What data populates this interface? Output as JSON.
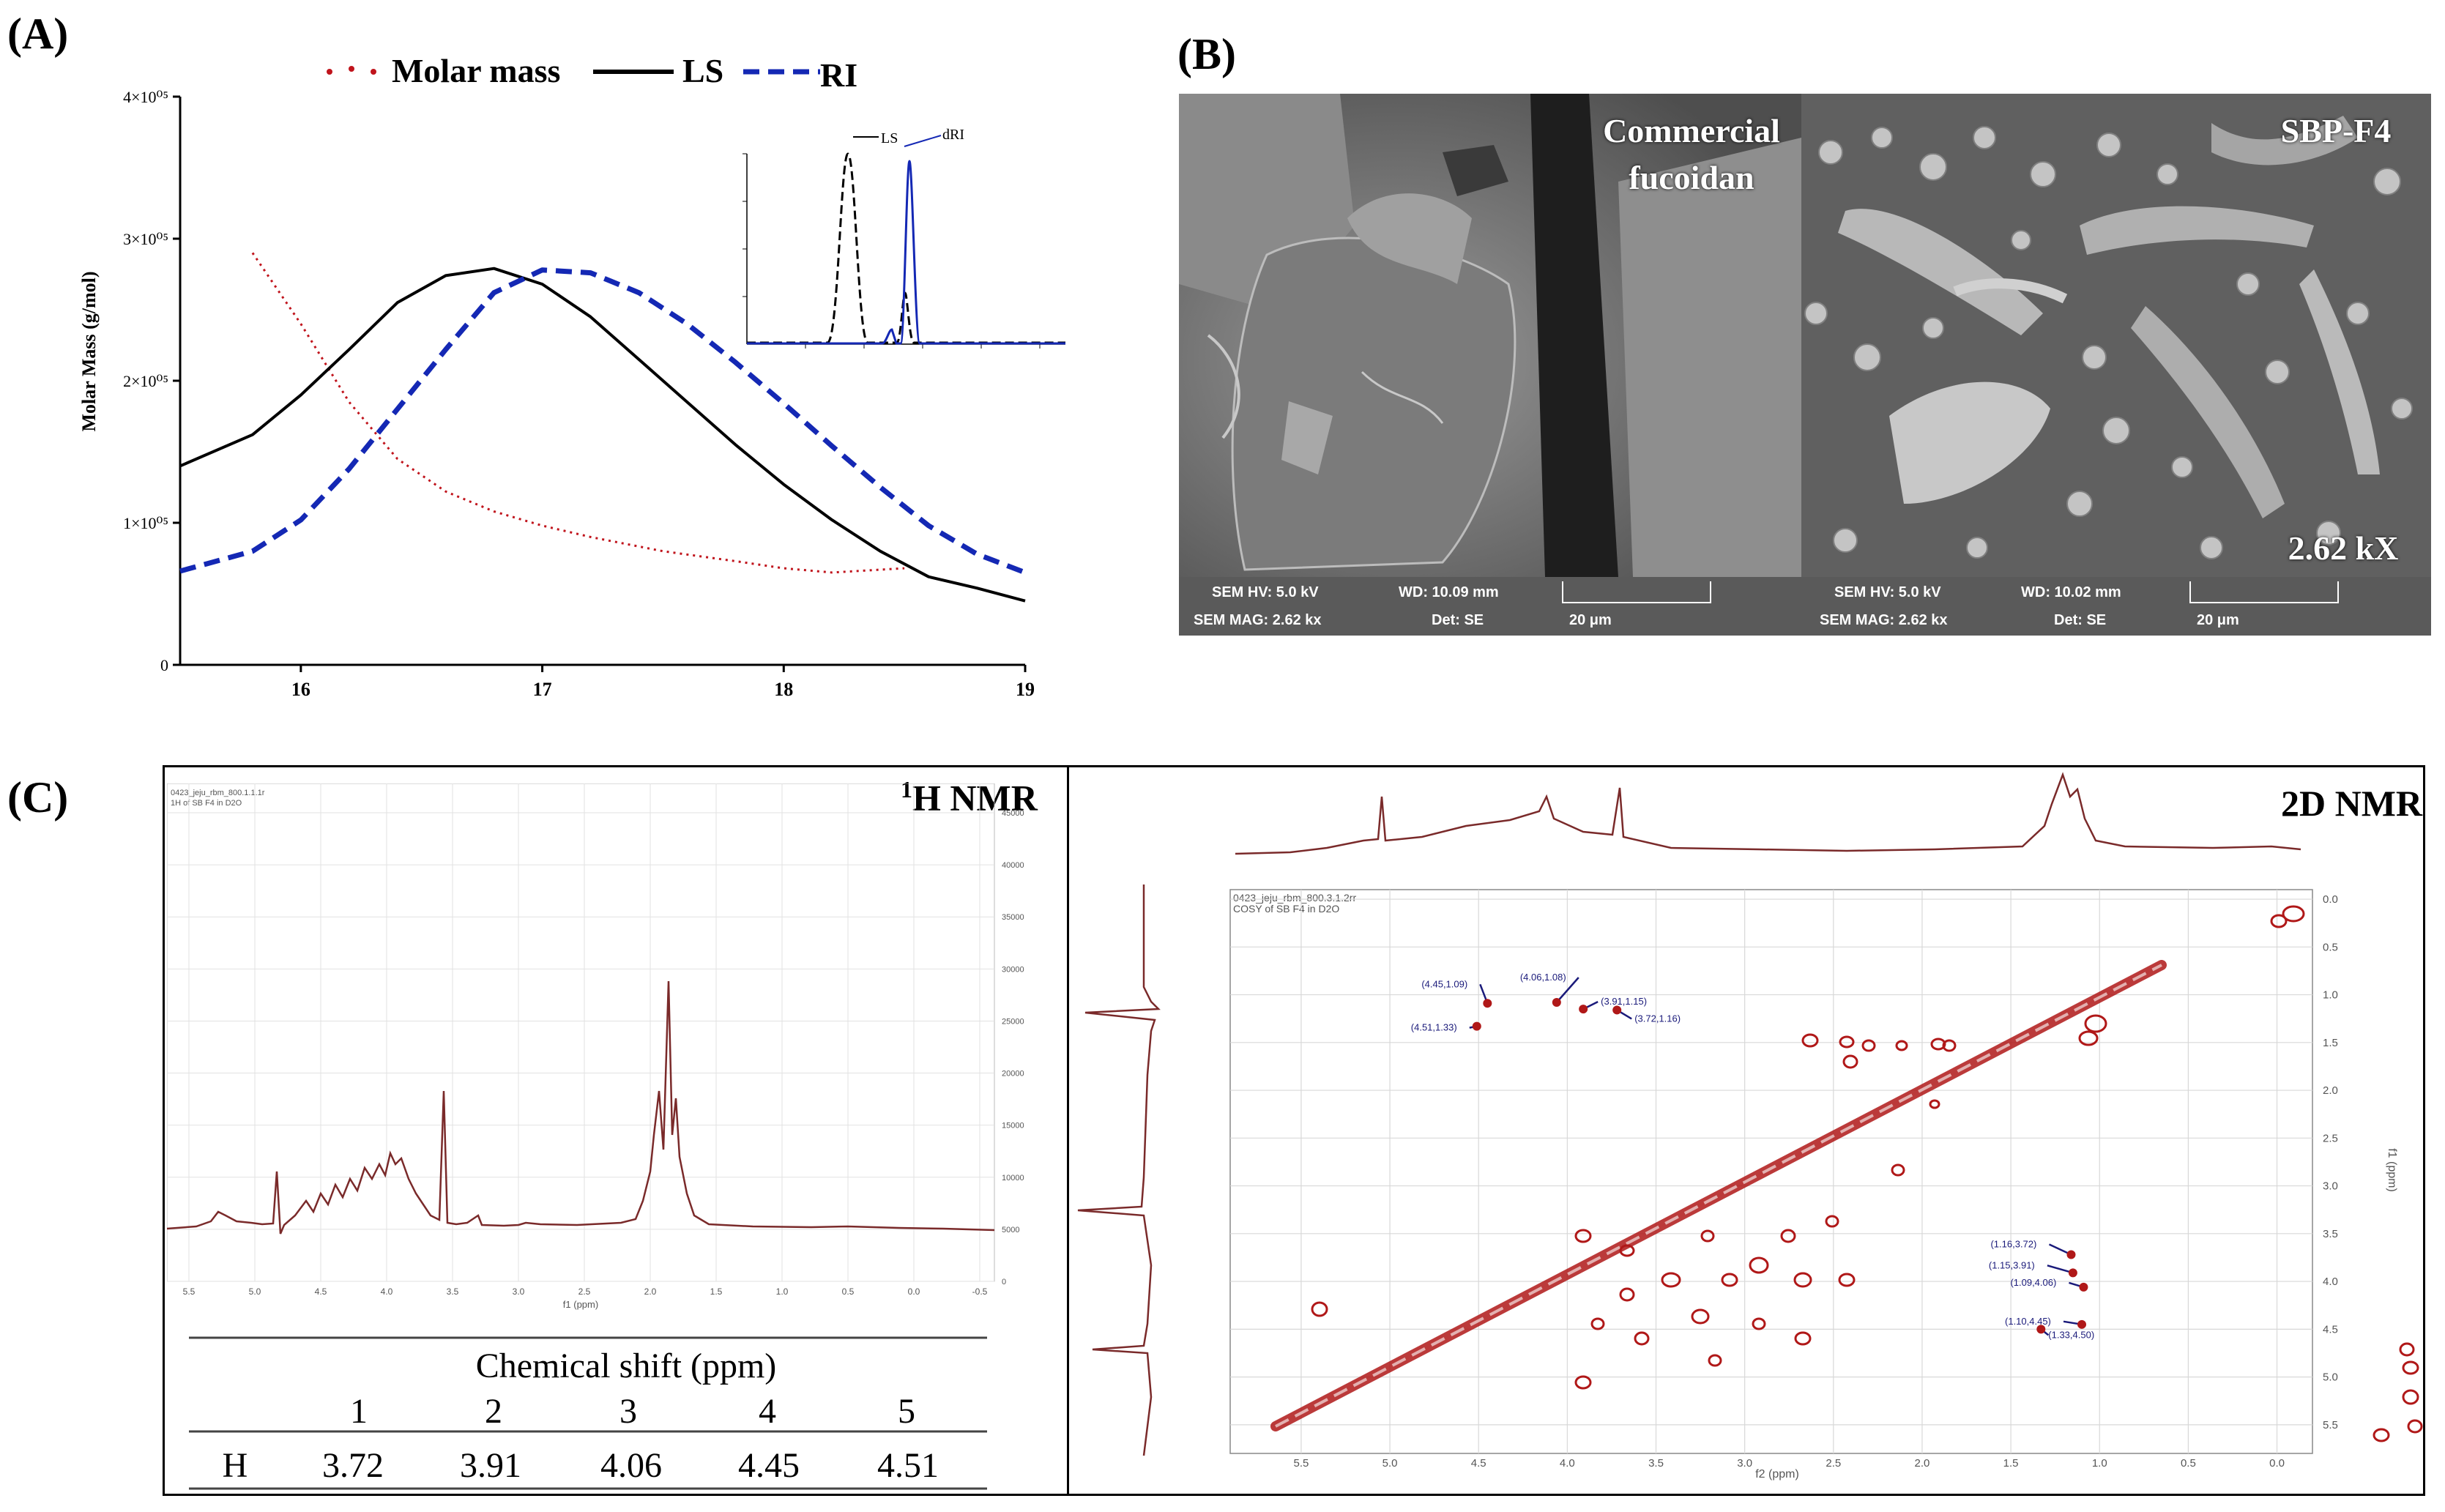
{
  "panels": {
    "a": {
      "label": "(A)",
      "legend": [
        {
          "name": "Molar mass",
          "color": "#c0141c",
          "style": "dotted"
        },
        {
          "name": "LS",
          "color": "#000000",
          "style": "solid"
        },
        {
          "name": "RI",
          "color": "#1428b4",
          "style": "dashed"
        }
      ],
      "ylabel": "Molar Mass (g/mol)",
      "yticks": [
        "0",
        "1×10⁰⁵",
        "2×10⁰⁵",
        "3×10⁰⁵",
        "4×10⁰⁵"
      ],
      "xticks": [
        "16",
        "17",
        "18",
        "19"
      ],
      "inset_labels": [
        "LS",
        "dRI"
      ]
    },
    "b": {
      "label": "(B)",
      "left_title_1": "Commercial",
      "left_title_2": "fucoidan",
      "right_title": "SBP-F4",
      "magnification": "2.62 kX",
      "left_bar": {
        "hv": "SEM HV: 5.0 kV",
        "wd": "WD: 10.09 mm",
        "mag": "SEM MAG: 2.62 kx",
        "det": "Det: SE",
        "scale": "20 μm"
      },
      "right_bar": {
        "hv": "SEM HV: 5.0 kV",
        "wd": "WD: 10.02 mm",
        "mag": "SEM MAG: 2.62 kx",
        "det": "Det: SE",
        "scale": "20 μm"
      }
    },
    "c": {
      "label": "(C)",
      "h_nmr_title_sup": "1",
      "h_nmr_title": "H NMR",
      "h_nmr_header": [
        "0423_jeju_rbm_800.1.1.1r",
        "1H of SB F4 in D2O"
      ],
      "h_nmr_xticks": [
        "5.5",
        "5.0",
        "4.5",
        "4.0",
        "3.5",
        "3.0",
        "2.5",
        "2.0",
        "1.5",
        "1.0",
        "0.5",
        "0.0",
        "-0.5"
      ],
      "h_nmr_xlabel": "f1 (ppm)",
      "h_nmr_yticks": [
        "0",
        "5000",
        "10000",
        "15000",
        "20000",
        "25000",
        "30000",
        "35000",
        "40000",
        "45000"
      ],
      "table": {
        "caption": "Chemical shift (ppm)",
        "columns": [
          "1",
          "2",
          "3",
          "4",
          "5"
        ],
        "row_label": "H",
        "values": [
          "3.72",
          "3.91",
          "4.06",
          "4.45",
          "4.51"
        ]
      },
      "d2_title": "2D NMR",
      "d2_header": [
        "0423_jeju_rbm_800.3.1.2rr",
        "COSY of SB F4 in D2O"
      ],
      "d2_xticks": [
        "5.5",
        "5.0",
        "4.5",
        "4.0",
        "3.5",
        "3.0",
        "2.5",
        "2.0",
        "1.5",
        "1.0",
        "0.5",
        "0.0"
      ],
      "d2_xlabel": "f2 (ppm)",
      "d2_yticks": [
        "0.0",
        "0.5",
        "1.0",
        "1.5",
        "2.0",
        "2.5",
        "3.0",
        "3.5",
        "4.0",
        "4.5",
        "5.0",
        "5.5"
      ],
      "d2_ylabel": "f1 (ppm)",
      "cross_peaks_top": [
        {
          "label": "(4.45,1.09)",
          "x": 4.45,
          "y": 1.09
        },
        {
          "label": "(4.06,1.08)",
          "x": 4.06,
          "y": 1.08
        },
        {
          "label": "(3.91,1.15)",
          "x": 3.91,
          "y": 1.15
        },
        {
          "label": "(4.51,1.33)",
          "x": 4.51,
          "y": 1.33
        },
        {
          "label": "(3.72,1.16)",
          "x": 3.72,
          "y": 1.16
        }
      ],
      "cross_peaks_right": [
        {
          "label": "(1.16,3.72)",
          "x": 1.16,
          "y": 3.72
        },
        {
          "label": "(1.15,3.91)",
          "x": 1.15,
          "y": 3.91
        },
        {
          "label": "(1.09,4.06)",
          "x": 1.09,
          "y": 4.06
        },
        {
          "label": "(1.10,4.45)",
          "x": 1.1,
          "y": 4.45
        },
        {
          "label": "(1.33,4.50)",
          "x": 1.33,
          "y": 4.5
        }
      ]
    }
  },
  "chart_data": [
    {
      "type": "line",
      "xlim": [
        15.5,
        19
      ],
      "ylim": [
        0,
        400000
      ],
      "legend_position": "top",
      "series": [
        {
          "name": "Molar mass",
          "color": "#c0141c",
          "x": [
            15.8,
            16.0,
            16.2,
            16.4,
            16.6,
            16.8,
            17.0,
            17.2,
            17.5,
            17.8,
            18.0,
            18.2,
            18.5
          ],
          "y": [
            290000,
            240000,
            185000,
            145000,
            122000,
            108000,
            98000,
            90000,
            80000,
            73000,
            68000,
            65000,
            68000
          ]
        },
        {
          "name": "LS",
          "color": "#000000",
          "x": [
            15.5,
            15.8,
            16.0,
            16.2,
            16.4,
            16.6,
            16.8,
            17.0,
            17.2,
            17.4,
            17.6,
            17.8,
            18.0,
            18.2,
            18.4,
            18.6,
            18.8,
            19.0
          ],
          "y": [
            140000,
            162000,
            190000,
            222000,
            255000,
            274000,
            279000,
            268000,
            245000,
            215000,
            185000,
            155000,
            127000,
            102000,
            80000,
            62000,
            54000,
            45000
          ]
        },
        {
          "name": "RI",
          "color": "#1428b4",
          "x": [
            15.5,
            15.8,
            16.0,
            16.2,
            16.4,
            16.6,
            16.8,
            17.0,
            17.2,
            17.4,
            17.6,
            17.8,
            18.0,
            18.2,
            18.4,
            18.6,
            18.8,
            19.0
          ],
          "y": [
            66000,
            80000,
            102000,
            138000,
            180000,
            222000,
            262000,
            278000,
            276000,
            262000,
            240000,
            213000,
            184000,
            154000,
            125000,
            98000,
            78000,
            65000
          ]
        }
      ]
    }
  ]
}
